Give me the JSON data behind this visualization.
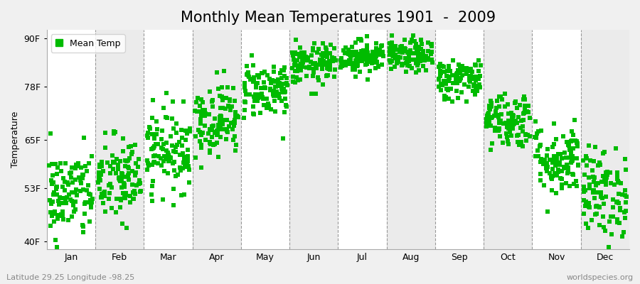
{
  "title": "Monthly Mean Temperatures 1901  -  2009",
  "ylabel": "Temperature",
  "yticks": [
    40,
    53,
    65,
    78,
    90
  ],
  "ytick_labels": [
    "40F",
    "53F",
    "65F",
    "78F",
    "90F"
  ],
  "ylim": [
    38,
    92
  ],
  "months": [
    "Jan",
    "Feb",
    "Mar",
    "Apr",
    "May",
    "Jun",
    "Jul",
    "Aug",
    "Sep",
    "Oct",
    "Nov",
    "Dec"
  ],
  "month_means": [
    51.5,
    55.0,
    62.5,
    70.0,
    77.5,
    83.5,
    85.5,
    85.5,
    80.0,
    70.0,
    60.0,
    52.0
  ],
  "month_stds": [
    5.5,
    5.5,
    5.0,
    4.5,
    3.5,
    2.5,
    2.0,
    2.0,
    2.5,
    3.5,
    4.5,
    5.5
  ],
  "n_years": 109,
  "dot_color": "#00BB00",
  "bg_color": "#FFFFFF",
  "fig_bg_color": "#F0F0F0",
  "alt_band_color": "#EBEBEB",
  "legend_label": "Mean Temp",
  "bottom_left_text": "Latitude 29.25 Longitude -98.25",
  "bottom_right_text": "worldspecies.org",
  "title_fontsize": 15,
  "axis_label_fontsize": 9,
  "tick_fontsize": 9,
  "annotation_fontsize": 8,
  "marker": "s",
  "marker_size": 4,
  "n_months": 12
}
